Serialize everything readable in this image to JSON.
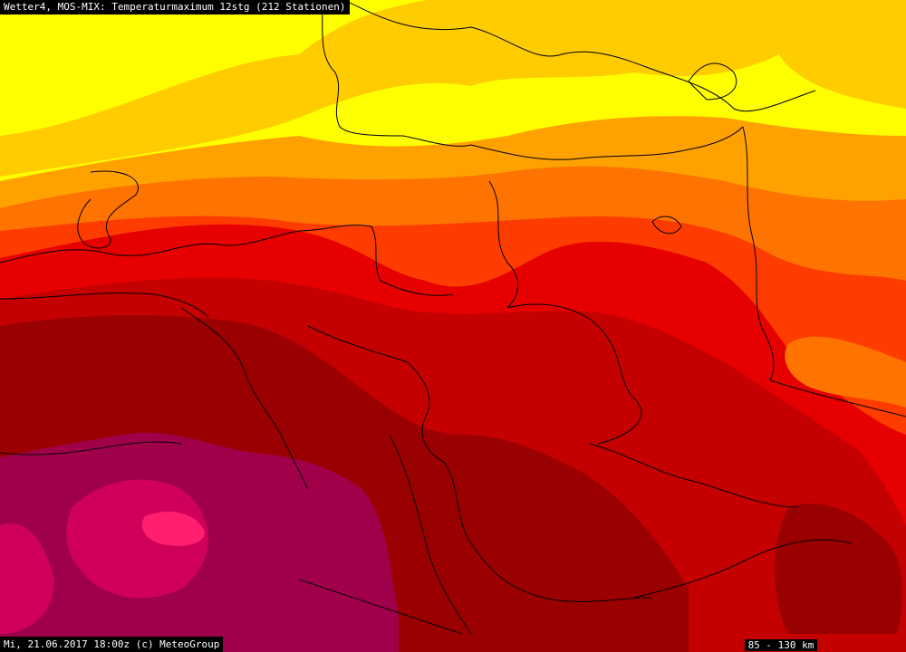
{
  "title": "Wetter4, MOS-MIX: Temperaturmaximum 12stg (212 Stationen)",
  "footer": "Mi, 21.06.2017 18:00z (c) MeteoGroup",
  "scale_label": "85 - 130 km",
  "colors": {
    "t14": "#ffff00",
    "t18": "#ffcc00",
    "t20": "#ffa200",
    "t22": "#ff7300",
    "t24": "#ff3c00",
    "t26": "#e60000",
    "t28": "#c40000",
    "t30": "#9b0000",
    "t32": "#a0004a",
    "t34": "#d0005a",
    "t36": "#ff1f6e",
    "border": "#000000"
  }
}
